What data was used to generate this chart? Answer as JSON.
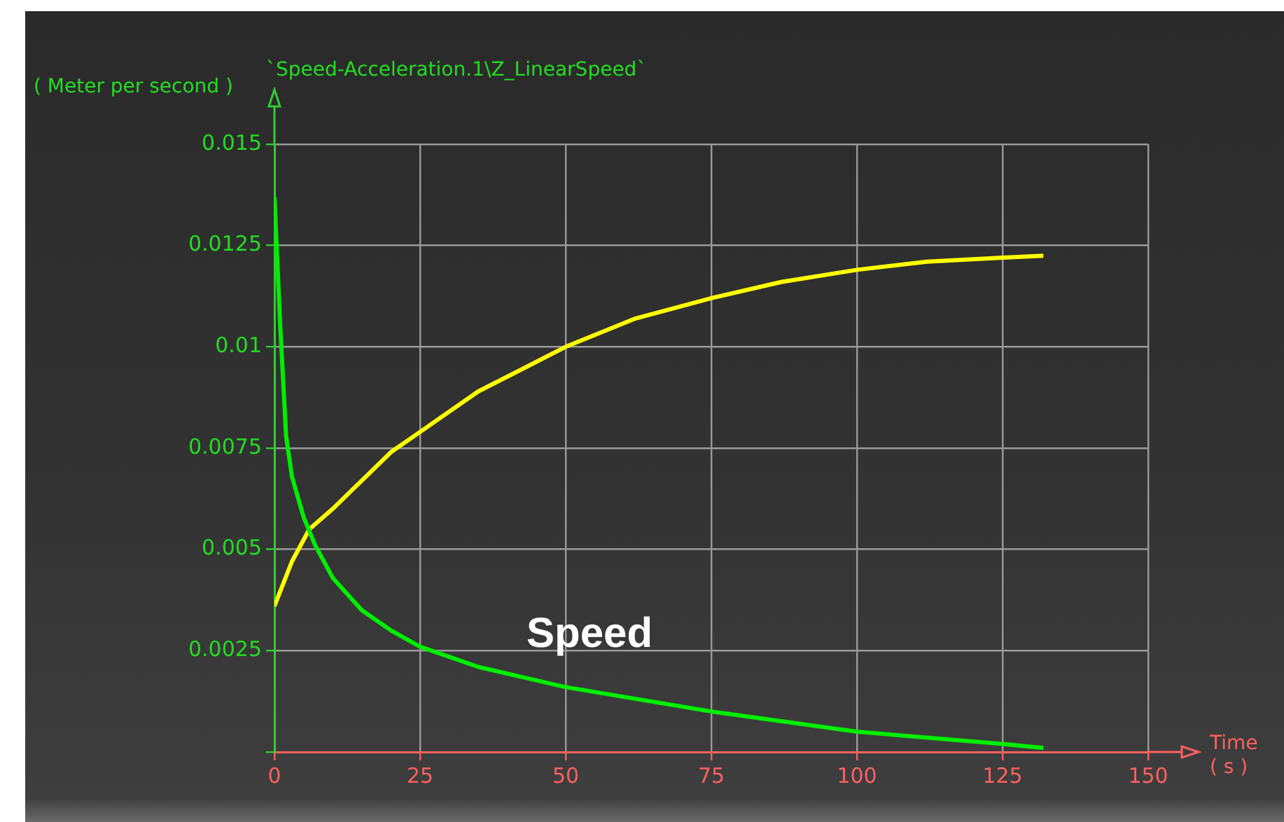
{
  "chart_data": {
    "type": "line",
    "title": "`Speed-Acceleration.1\\Z_LinearSpeed`",
    "ylabel": "( Meter per second )",
    "xlabel": "Time ( s )",
    "annotations": [
      "Speed"
    ],
    "xlim": [
      0,
      150
    ],
    "xticks": [
      0,
      25,
      50,
      75,
      100,
      125,
      150
    ],
    "ylim": [
      0,
      0.015
    ],
    "yticks": [
      {
        "value": 0,
        "label": null
      },
      0.0025,
      0.005,
      0.0075,
      0.01,
      0.0125,
      0.015
    ],
    "grid": true,
    "legend": false,
    "marker": "none",
    "line_style": "solid",
    "series": [
      {
        "color": "#00ee00",
        "x": [
          0,
          1,
          2,
          3,
          5,
          7,
          10,
          15,
          20,
          25,
          35,
          50,
          75,
          100,
          125,
          132
        ],
        "values": [
          0.0137,
          0.0105,
          0.0078,
          0.0068,
          0.0058,
          0.0051,
          0.0043,
          0.0035,
          0.003,
          0.0026,
          0.0021,
          0.0016,
          0.001,
          0.0005,
          0.0002,
          0.0001
        ]
      },
      {
        "color": "#ffff00",
        "x": [
          0,
          3,
          6,
          10,
          15,
          20,
          25,
          35,
          50,
          62,
          75,
          87,
          100,
          112,
          125,
          132
        ],
        "values": [
          0.0036,
          0.0047,
          0.0055,
          0.006,
          0.0067,
          0.0074,
          0.0079,
          0.0089,
          0.01,
          0.0107,
          0.0112,
          0.0116,
          0.0119,
          0.0121,
          0.0122,
          0.01225
        ]
      }
    ]
  }
}
